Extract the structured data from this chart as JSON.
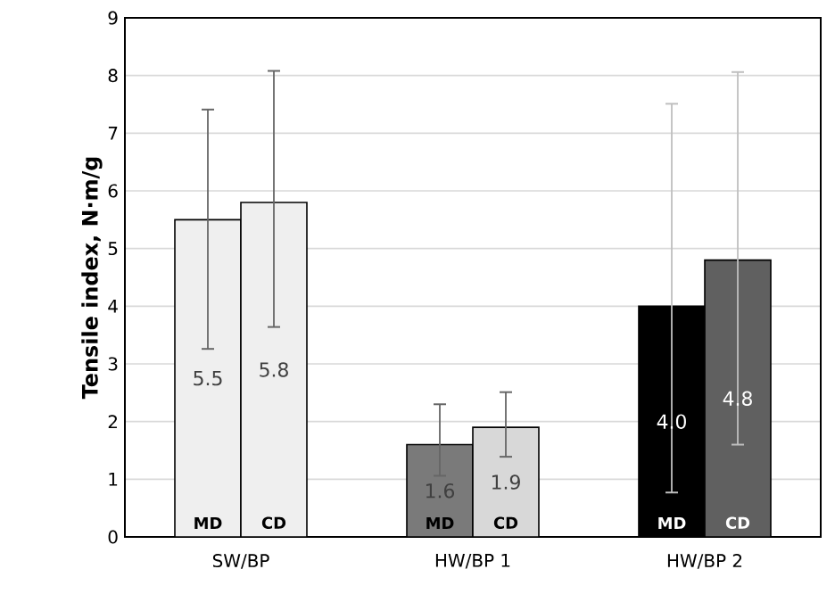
{
  "chart_data": {
    "type": "bar",
    "ylabel": "Tensile index, N·m/g",
    "categories": [
      "SW/BP",
      "HW/BP 1",
      "HW/BP 2"
    ],
    "series": [
      {
        "name": "MD",
        "colors": [
          "#efefef",
          "#7a7a7a",
          "#000000"
        ],
        "values": [
          5.5,
          1.6,
          4.0
        ],
        "value_labels": [
          "5.5",
          "1.6",
          "4.0"
        ],
        "errors": [
          [
            3.26,
            7.41
          ],
          [
            1.06,
            2.3
          ],
          [
            0.77,
            7.51
          ]
        ]
      },
      {
        "name": "CD",
        "colors": [
          "#efefef",
          "#d8d8d8",
          "#606060"
        ],
        "values": [
          5.8,
          1.9,
          4.8
        ],
        "value_labels": [
          "5.8",
          "1.9",
          "4.8"
        ],
        "errors": [
          [
            3.64,
            8.08
          ],
          [
            1.39,
            2.51
          ],
          [
            1.6,
            8.06
          ]
        ]
      }
    ],
    "ylim": [
      0,
      9
    ],
    "yticks": [
      0,
      1,
      2,
      3,
      4,
      5,
      6,
      7,
      8,
      9
    ],
    "grid": "y"
  }
}
